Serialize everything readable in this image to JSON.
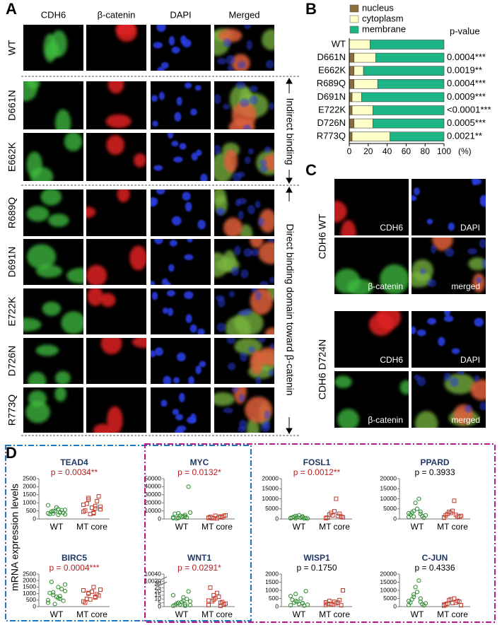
{
  "panel_labels": [
    "A",
    "B",
    "C",
    "D"
  ],
  "panel_a": {
    "columns": [
      "CDH6",
      "β-catenin",
      "DAPI",
      "Merged"
    ],
    "rows": [
      "WT",
      "D661N",
      "E662K",
      "R689Q",
      "D691N",
      "E722K",
      "D726N",
      "R773Q"
    ],
    "annotations": [
      "Indirect binding",
      "Direct binding domain toward β-catenin"
    ]
  },
  "panel_c": {
    "row_labels": [
      "CDH6 WT",
      "CDH6 D724N"
    ],
    "image_labels": [
      "CDH6",
      "DAPI",
      "β-catenin",
      "merged"
    ]
  },
  "panel_d": {
    "ylabel": "mRNA expression levels"
  },
  "chart_data": [
    {
      "type": "stacked-bar",
      "orientation": "horizontal",
      "categories": [
        "WT",
        "D661N",
        "E662K",
        "R689Q",
        "D691N",
        "E722K",
        "D726N",
        "R773Q"
      ],
      "series": [
        {
          "name": "nucleus",
          "color": "#8c6d3b",
          "values": [
            0,
            5,
            5,
            5,
            3,
            3,
            5,
            3
          ]
        },
        {
          "name": "cytoplasm",
          "color": "#ffffc8",
          "values": [
            22,
            23,
            10,
            25,
            10,
            22,
            20,
            40
          ]
        },
        {
          "name": "membrane",
          "color": "#1db585",
          "values": [
            78,
            72,
            85,
            70,
            87,
            75,
            75,
            57
          ]
        }
      ],
      "pvalue_title": "p-value",
      "pvalues": [
        null,
        "0.0004***",
        "0.0019**",
        "0.0004***",
        "0.0009***",
        "<0.0001***",
        "0.0005***",
        "0.0021**"
      ],
      "xlim": [
        0,
        100
      ],
      "xticks": [
        0,
        20,
        40,
        60,
        80,
        100
      ],
      "xlabel": "(%)",
      "legend": "top"
    },
    {
      "type": "strip",
      "title": "TEAD4",
      "subtitle": "p = 0.0034**",
      "subtitle_color": "#b22222",
      "categories": [
        "WT",
        "MT core"
      ],
      "ylim": [
        0,
        2500
      ],
      "yticks": [
        0,
        500,
        1000,
        1500,
        2000,
        2500
      ],
      "groups": [
        {
          "color": "#2e8b2e",
          "values": [
            350,
            420,
            500,
            280,
            610,
            450,
            380,
            720,
            300,
            540,
            470,
            850,
            400,
            330,
            560,
            260
          ]
        },
        {
          "color": "#c0392b",
          "values": [
            450,
            800,
            1200,
            600,
            350,
            950,
            1400,
            700,
            520,
            1100,
            300,
            880,
            650,
            1300,
            760,
            400
          ]
        }
      ]
    },
    {
      "type": "strip",
      "title": "MYC",
      "subtitle": "p = 0.0132*",
      "subtitle_color": "#b22222",
      "categories": [
        "WT",
        "MT core"
      ],
      "ylim": [
        0,
        50000
      ],
      "yticks": [
        0,
        10000,
        20000,
        30000,
        40000,
        50000
      ],
      "groups": [
        {
          "color": "#2e8b2e",
          "values": [
            2000,
            5000,
            1200,
            8000,
            3500,
            600,
            40000,
            2500,
            6500,
            1800,
            4200,
            900,
            3000,
            7000
          ]
        },
        {
          "color": "#c0392b",
          "values": [
            1500,
            3000,
            800,
            4500,
            2200,
            1000,
            3800,
            600,
            2600,
            1800,
            4000,
            1200
          ]
        }
      ]
    },
    {
      "type": "strip",
      "title": "FOSL1",
      "subtitle": "p = 0.0012**",
      "subtitle_color": "#b22222",
      "categories": [
        "WT",
        "MT core"
      ],
      "ylim": [
        0,
        20000
      ],
      "yticks": [
        0,
        5000,
        10000,
        15000,
        20000
      ],
      "groups": [
        {
          "color": "#2e8b2e",
          "values": [
            300,
            800,
            1500,
            200,
            600,
            1100,
            400,
            1800,
            700,
            250,
            950,
            500,
            1300,
            350
          ]
        },
        {
          "color": "#c0392b",
          "values": [
            500,
            1500,
            3000,
            800,
            10000,
            2200,
            1200,
            3800,
            600,
            2600,
            1800,
            400
          ]
        }
      ]
    },
    {
      "type": "strip",
      "title": "PPARD",
      "subtitle": "p = 0.3933",
      "subtitle_color": "#000000",
      "categories": [
        "WT",
        "MT core"
      ],
      "ylim": [
        0,
        20000
      ],
      "yticks": [
        0,
        5000,
        10000,
        15000,
        20000
      ],
      "groups": [
        {
          "color": "#2e8b2e",
          "values": [
            1000,
            2500,
            4000,
            1800,
            10000,
            3200,
            600,
            5000,
            2200,
            1400,
            8000,
            2800,
            3600,
            1200
          ]
        },
        {
          "color": "#c0392b",
          "values": [
            800,
            2000,
            3500,
            1500,
            9000,
            2500,
            1000,
            4000,
            1800,
            1200,
            3000,
            600
          ]
        }
      ]
    },
    {
      "type": "strip",
      "title": "BIRC5",
      "subtitle": "p = 0.0004***",
      "subtitle_color": "#b22222",
      "categories": [
        "WT",
        "MT core"
      ],
      "ylim": [
        0,
        2500
      ],
      "yticks": [
        0,
        500,
        1000,
        1500,
        2000,
        2500
      ],
      "groups": [
        {
          "color": "#2e8b2e",
          "values": [
            300,
            600,
            900,
            1200,
            1500,
            1900,
            450,
            750,
            1050,
            1350,
            200,
            500,
            800,
            1100,
            1700,
            650
          ]
        },
        {
          "color": "#c0392b",
          "values": [
            400,
            700,
            1000,
            1300,
            1500,
            600,
            850,
            1150,
            300,
            950,
            550,
            1250,
            750,
            1050
          ]
        }
      ]
    },
    {
      "type": "strip",
      "title": "WNT1",
      "subtitle": "p = 0.0291*",
      "subtitle_color": "#b22222",
      "categories": [
        "WT",
        "MT core"
      ],
      "ylim": [
        0,
        10040
      ],
      "ybreak": [
        30,
        10020
      ],
      "yticks": [
        0,
        5,
        10,
        15,
        20,
        25,
        30,
        10020,
        10040
      ],
      "groups": [
        {
          "color": "#2e8b2e",
          "values": [
            1,
            3,
            5,
            2,
            8,
            4,
            20,
            6,
            2,
            10,
            3,
            15,
            1,
            5,
            7,
            12
          ]
        },
        {
          "color": "#c0392b",
          "values": [
            2,
            5,
            9,
            4,
            13,
            7,
            3,
            18,
            25,
            6,
            11,
            8,
            1,
            15
          ]
        }
      ]
    },
    {
      "type": "strip",
      "title": "WISP1",
      "subtitle": "p = 0.1750",
      "subtitle_color": "#000000",
      "categories": [
        "WT",
        "MT core"
      ],
      "ylim": [
        0,
        2000
      ],
      "yticks": [
        0,
        500,
        1000,
        1500,
        2000
      ],
      "groups": [
        {
          "color": "#2e8b2e",
          "values": [
            80,
            200,
            350,
            120,
            500,
            250,
            950,
            160,
            420,
            60,
            300,
            650,
            220,
            780
          ]
        },
        {
          "color": "#c0392b",
          "values": [
            100,
            250,
            150,
            1000,
            200,
            350,
            80,
            300,
            180,
            400,
            120,
            260
          ]
        }
      ]
    },
    {
      "type": "strip",
      "title": "C-JUN",
      "subtitle": "p = 0.4336",
      "subtitle_color": "#000000",
      "categories": [
        "WT",
        "MT core"
      ],
      "ylim": [
        0,
        20000
      ],
      "yticks": [
        0,
        5000,
        10000,
        15000,
        20000
      ],
      "groups": [
        {
          "color": "#2e8b2e",
          "values": [
            1000,
            3000,
            6000,
            2000,
            16000,
            4500,
            800,
            9000,
            2500,
            1500,
            12000,
            3500,
            5000,
            7500
          ]
        },
        {
          "color": "#c0392b",
          "values": [
            1200,
            2500,
            4000,
            800,
            5000,
            1800,
            3000,
            2200,
            1500,
            3500,
            4500,
            600
          ]
        }
      ]
    }
  ]
}
